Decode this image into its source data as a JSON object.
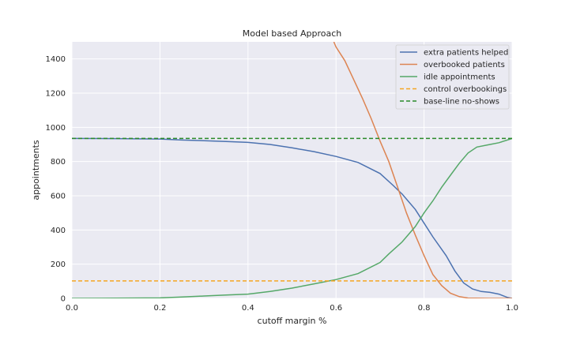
{
  "chart_data": {
    "type": "line",
    "title": "Model based Approach",
    "xlabel": "cutoff margin %",
    "ylabel": "appointments",
    "xlim": [
      0.0,
      1.0
    ],
    "ylim": [
      0,
      1500
    ],
    "x_ticks": [
      "0.0",
      "0.2",
      "0.4",
      "0.6",
      "0.8",
      "1.0"
    ],
    "x_tick_values": [
      0.0,
      0.2,
      0.4,
      0.6,
      0.8,
      1.0
    ],
    "y_ticks": [
      "0",
      "200",
      "400",
      "600",
      "800",
      "1000",
      "1200",
      "1400"
    ],
    "y_tick_values": [
      0,
      200,
      400,
      600,
      800,
      1000,
      1200,
      1400
    ],
    "grid": true,
    "legend_position": "top-right",
    "series": [
      {
        "name": "extra patients helped",
        "color": "#4c72b0",
        "style": "solid",
        "points": [
          [
            0.0,
            935
          ],
          [
            0.1,
            934
          ],
          [
            0.2,
            932
          ],
          [
            0.25,
            926
          ],
          [
            0.3,
            922
          ],
          [
            0.35,
            917
          ],
          [
            0.4,
            912
          ],
          [
            0.45,
            900
          ],
          [
            0.5,
            880
          ],
          [
            0.55,
            858
          ],
          [
            0.6,
            830
          ],
          [
            0.65,
            795
          ],
          [
            0.7,
            730
          ],
          [
            0.73,
            660
          ],
          [
            0.75,
            610
          ],
          [
            0.78,
            520
          ],
          [
            0.8,
            440
          ],
          [
            0.82,
            360
          ],
          [
            0.85,
            250
          ],
          [
            0.87,
            160
          ],
          [
            0.89,
            90
          ],
          [
            0.91,
            55
          ],
          [
            0.93,
            40
          ],
          [
            0.95,
            35
          ],
          [
            0.97,
            25
          ],
          [
            0.99,
            5
          ],
          [
            1.0,
            0
          ]
        ]
      },
      {
        "name": "overbooked patients",
        "color": "#dd8452",
        "style": "solid",
        "points": [
          [
            0.595,
            1500
          ],
          [
            0.6,
            1470
          ],
          [
            0.62,
            1390
          ],
          [
            0.64,
            1280
          ],
          [
            0.66,
            1170
          ],
          [
            0.68,
            1050
          ],
          [
            0.7,
            920
          ],
          [
            0.72,
            800
          ],
          [
            0.74,
            650
          ],
          [
            0.76,
            500
          ],
          [
            0.78,
            370
          ],
          [
            0.8,
            250
          ],
          [
            0.82,
            140
          ],
          [
            0.84,
            75
          ],
          [
            0.86,
            30
          ],
          [
            0.88,
            10
          ],
          [
            0.9,
            2
          ],
          [
            0.95,
            0
          ],
          [
            1.0,
            0
          ]
        ]
      },
      {
        "name": "idle appointments",
        "color": "#55a868",
        "style": "solid",
        "points": [
          [
            0.0,
            0
          ],
          [
            0.1,
            1
          ],
          [
            0.2,
            3
          ],
          [
            0.25,
            8
          ],
          [
            0.3,
            14
          ],
          [
            0.35,
            20
          ],
          [
            0.4,
            25
          ],
          [
            0.45,
            40
          ],
          [
            0.5,
            60
          ],
          [
            0.55,
            85
          ],
          [
            0.6,
            110
          ],
          [
            0.65,
            145
          ],
          [
            0.7,
            210
          ],
          [
            0.72,
            260
          ],
          [
            0.75,
            330
          ],
          [
            0.78,
            420
          ],
          [
            0.8,
            500
          ],
          [
            0.82,
            570
          ],
          [
            0.84,
            650
          ],
          [
            0.86,
            720
          ],
          [
            0.88,
            790
          ],
          [
            0.9,
            850
          ],
          [
            0.92,
            885
          ],
          [
            0.95,
            900
          ],
          [
            0.97,
            910
          ],
          [
            1.0,
            935
          ]
        ]
      },
      {
        "name": "control overbookings",
        "color": "#f5a623",
        "style": "dashed",
        "points": [
          [
            0.0,
            102
          ],
          [
            1.0,
            102
          ]
        ]
      },
      {
        "name": "base-line no-shows",
        "color": "#2a8a2a",
        "style": "dashed",
        "points": [
          [
            0.0,
            935
          ],
          [
            1.0,
            935
          ]
        ]
      }
    ]
  }
}
